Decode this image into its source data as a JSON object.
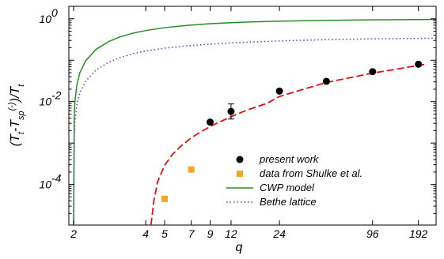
{
  "chart_data": {
    "type": "scatter",
    "title": "",
    "xlabel": "q",
    "ylabel": "(T_t-T_sp^(-))/T_t",
    "xscale": "log(q-1)",
    "yscale": "log",
    "xlim": [
      1.93,
      251
    ],
    "ylim": [
      1.05e-05,
      2.0
    ],
    "xticks": [
      {
        "value": 2,
        "label": "2"
      },
      {
        "value": 4,
        "label": "4"
      },
      {
        "value": 5,
        "label": "5"
      },
      {
        "value": 7,
        "label": "7"
      },
      {
        "value": 9,
        "label": "9"
      },
      {
        "value": 12,
        "label": "12"
      },
      {
        "value": 24,
        "label": "24"
      },
      {
        "value": 96,
        "label": "96"
      },
      {
        "value": 192,
        "label": "192"
      }
    ],
    "yticks": [
      {
        "value": 0.0001,
        "base": "10",
        "exp": "-4"
      },
      {
        "value": 0.01,
        "base": "10",
        "exp": "-2"
      },
      {
        "value": 1,
        "base": "10",
        "exp": "0"
      }
    ],
    "grid": false,
    "legend_position": "bottom-right",
    "series": [
      {
        "name": "present work",
        "kind": "points",
        "marker": "circle",
        "color": "#000000",
        "points": [
          {
            "x": 9,
            "y": 0.0032
          },
          {
            "x": 12,
            "y": 0.0058,
            "err_low": 0.0038,
            "err_high": 0.0088
          },
          {
            "x": 24,
            "y": 0.018
          },
          {
            "x": 48,
            "y": 0.031
          },
          {
            "x": 96,
            "y": 0.053
          },
          {
            "x": 192,
            "y": 0.08
          }
        ]
      },
      {
        "name": "data from Shulke et al.",
        "kind": "points",
        "marker": "square",
        "color": "#f5a623",
        "points": [
          {
            "x": 5,
            "y": 4.5e-05
          },
          {
            "x": 7,
            "y": 0.00023
          }
        ]
      },
      {
        "name": "CWP model",
        "kind": "line",
        "style": "solid",
        "color": "#2a8a2a",
        "points": [
          {
            "x": 2.0,
            "y": 1e-05
          },
          {
            "x": 2.01,
            "y": 0.0045
          },
          {
            "x": 2.02,
            "y": 0.0099
          },
          {
            "x": 2.05,
            "y": 0.025
          },
          {
            "x": 2.1,
            "y": 0.05
          },
          {
            "x": 2.2,
            "y": 0.096
          },
          {
            "x": 2.4,
            "y": 0.18
          },
          {
            "x": 2.7,
            "y": 0.28
          },
          {
            "x": 3,
            "y": 0.36
          },
          {
            "x": 3.5,
            "y": 0.455
          },
          {
            "x": 4,
            "y": 0.52
          },
          {
            "x": 5,
            "y": 0.61
          },
          {
            "x": 6,
            "y": 0.665
          },
          {
            "x": 7,
            "y": 0.705
          },
          {
            "x": 9,
            "y": 0.76
          },
          {
            "x": 12,
            "y": 0.805
          },
          {
            "x": 16,
            "y": 0.84
          },
          {
            "x": 24,
            "y": 0.875
          },
          {
            "x": 32,
            "y": 0.895
          },
          {
            "x": 48,
            "y": 0.915
          },
          {
            "x": 64,
            "y": 0.927
          },
          {
            "x": 96,
            "y": 0.942
          },
          {
            "x": 128,
            "y": 0.95
          },
          {
            "x": 192,
            "y": 0.96
          },
          {
            "x": 250,
            "y": 0.965
          }
        ]
      },
      {
        "name": "Bethe lattice",
        "kind": "line",
        "style": "dotted",
        "color": "#4a3fd0",
        "points": [
          {
            "x": 2.0,
            "y": 1e-05
          },
          {
            "x": 2.01,
            "y": 0.0015
          },
          {
            "x": 2.02,
            "y": 0.0033
          },
          {
            "x": 2.05,
            "y": 0.0082
          },
          {
            "x": 2.1,
            "y": 0.0163
          },
          {
            "x": 2.2,
            "y": 0.031
          },
          {
            "x": 2.4,
            "y": 0.057
          },
          {
            "x": 2.7,
            "y": 0.089
          },
          {
            "x": 3,
            "y": 0.114
          },
          {
            "x": 3.5,
            "y": 0.145
          },
          {
            "x": 4,
            "y": 0.167
          },
          {
            "x": 5,
            "y": 0.195
          },
          {
            "x": 6,
            "y": 0.213
          },
          {
            "x": 7,
            "y": 0.226
          },
          {
            "x": 9,
            "y": 0.244
          },
          {
            "x": 12,
            "y": 0.262
          },
          {
            "x": 16,
            "y": 0.276
          },
          {
            "x": 24,
            "y": 0.292
          },
          {
            "x": 32,
            "y": 0.302
          },
          {
            "x": 48,
            "y": 0.313
          },
          {
            "x": 64,
            "y": 0.32
          },
          {
            "x": 96,
            "y": 0.328
          },
          {
            "x": 128,
            "y": 0.332
          },
          {
            "x": 192,
            "y": 0.337
          },
          {
            "x": 250,
            "y": 0.34
          }
        ]
      },
      {
        "name": "",
        "kind": "line",
        "style": "dashed",
        "color": "#e01010",
        "points": [
          {
            "x": 4.25,
            "y": 1.05e-05
          },
          {
            "x": 4.4,
            "y": 4.2e-05
          },
          {
            "x": 4.6,
            "y": 0.000118
          },
          {
            "x": 5,
            "y": 0.00029
          },
          {
            "x": 5.5,
            "y": 0.00053
          },
          {
            "x": 6,
            "y": 0.00078
          },
          {
            "x": 7,
            "y": 0.00134
          },
          {
            "x": 8,
            "y": 0.0019
          },
          {
            "x": 9,
            "y": 0.0025
          },
          {
            "x": 10,
            "y": 0.0031
          },
          {
            "x": 12,
            "y": 0.0043
          },
          {
            "x": 14,
            "y": 0.0056
          },
          {
            "x": 16,
            "y": 0.0068
          },
          {
            "x": 20,
            "y": 0.0091
          },
          {
            "x": 24,
            "y": 0.0133
          },
          {
            "x": 32,
            "y": 0.0185
          },
          {
            "x": 48,
            "y": 0.029
          },
          {
            "x": 64,
            "y": 0.036
          },
          {
            "x": 96,
            "y": 0.049
          },
          {
            "x": 128,
            "y": 0.058
          },
          {
            "x": 160,
            "y": 0.067
          },
          {
            "x": 192,
            "y": 0.075
          },
          {
            "x": 220,
            "y": 0.081
          }
        ]
      }
    ]
  }
}
